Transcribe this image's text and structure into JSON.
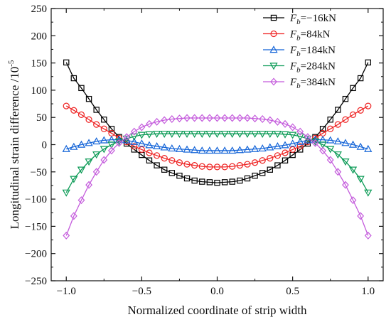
{
  "chart_data": {
    "type": "line",
    "xlabel": "Normalized coordinate of strip width",
    "ylabel": {
      "base": "Longitudinal strain difference /10",
      "exponent": "-5"
    },
    "xlim": [
      -1.1,
      1.1
    ],
    "ylim": [
      -250,
      250
    ],
    "xticks": [
      "-1.0",
      "-0.5",
      "0.0",
      "0.5",
      "1.0"
    ],
    "yticks": [
      "250",
      "200",
      "150",
      "100",
      "50",
      "0",
      "-50",
      "-100",
      "-150",
      "-200",
      "-250"
    ],
    "grid": false,
    "legend_position": "top-right",
    "x_samples": 41,
    "series": [
      {
        "name": "Fb=-16kN",
        "label": {
          "main": "F",
          "sub": "b",
          "rest": "=-16kN"
        },
        "marker": "square",
        "color": "#000000",
        "values": [
          151,
          122,
          104,
          84,
          64,
          46,
          29,
          14,
          2,
          -9,
          -19,
          -29,
          -38,
          -46,
          -52,
          -57,
          -62,
          -66,
          -68,
          -69,
          -70,
          -69,
          -68,
          -66,
          -62,
          -57,
          -52,
          -46,
          -38,
          -29,
          -19,
          -9,
          2,
          14,
          29,
          46,
          64,
          84,
          104,
          122,
          151
        ]
      },
      {
        "name": "Fb=84kN",
        "label": {
          "main": "F",
          "sub": "b",
          "rest": "=84kN"
        },
        "marker": "circle",
        "color": "#ee2222",
        "values": [
          71,
          63,
          55,
          46,
          37,
          29,
          21,
          12,
          5,
          -3,
          -9,
          -15,
          -20,
          -25,
          -29,
          -33,
          -36,
          -38,
          -40,
          -41,
          -41,
          -41,
          -40,
          -38,
          -36,
          -33,
          -29,
          -25,
          -20,
          -15,
          -9,
          -3,
          5,
          12,
          21,
          29,
          37,
          46,
          55,
          63,
          71
        ]
      },
      {
        "name": "Fb=184kN",
        "label": {
          "main": "F",
          "sub": "b",
          "rest": "=184kN"
        },
        "marker": "triangle-up",
        "color": "#1565d8",
        "values": [
          -8,
          -4,
          0,
          3,
          6,
          8,
          9,
          9,
          8,
          5,
          2,
          -1,
          -3,
          -5,
          -7,
          -8,
          -9,
          -10,
          -11,
          -11,
          -11,
          -11,
          -11,
          -10,
          -9,
          -8,
          -7,
          -5,
          -3,
          -1,
          2,
          5,
          8,
          9,
          9,
          8,
          6,
          3,
          0,
          -4,
          -8
        ]
      },
      {
        "name": "Fb=284kN",
        "label": {
          "main": "F",
          "sub": "b",
          "rest": "=284kN"
        },
        "marker": "triangle-down",
        "color": "#0a9a55",
        "values": [
          -88,
          -63,
          -46,
          -31,
          -18,
          -8,
          0,
          6,
          11,
          15,
          18,
          19,
          20,
          20,
          20,
          20,
          20,
          20,
          20,
          20,
          20,
          20,
          20,
          20,
          20,
          20,
          20,
          20,
          20,
          19,
          18,
          15,
          11,
          6,
          0,
          -8,
          -18,
          -31,
          -46,
          -63,
          -88
        ]
      },
      {
        "name": "Fb=384kN",
        "label": {
          "main": "F",
          "sub": "b",
          "rest": "=384kN"
        },
        "marker": "diamond",
        "color": "#c45bdc",
        "values": [
          -167,
          -131,
          -102,
          -74,
          -50,
          -28,
          -11,
          3,
          14,
          24,
          32,
          38,
          42,
          45,
          47,
          48,
          49,
          49,
          49,
          49,
          49,
          49,
          49,
          49,
          49,
          48,
          47,
          45,
          42,
          38,
          32,
          24,
          14,
          3,
          -11,
          -28,
          -50,
          -74,
          -102,
          -131,
          -167
        ]
      }
    ]
  }
}
